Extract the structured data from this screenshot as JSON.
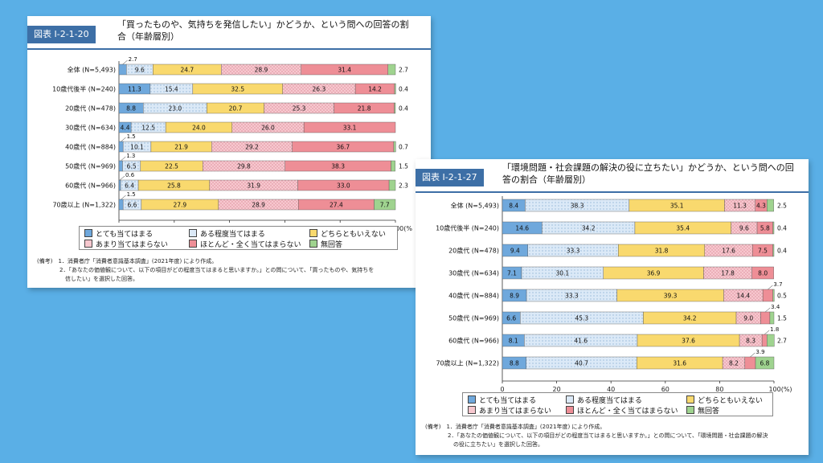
{
  "colors": {
    "very": "#6fa8dc",
    "somewhat": "#dbe9f7",
    "neutral": "#f9d96e",
    "not_much": "#f7c8cf",
    "not_at_all": "#ee8e96",
    "no_answer": "#9fd38f",
    "tag": "#3d6fa6"
  },
  "legend_labels": [
    "とても当てはまる",
    "ある程度当てはまる",
    "どちらともいえない",
    "あまり当てはまらない",
    "ほとんど・全く当てはまらない",
    "無回答"
  ],
  "axis_ticks": [
    "0",
    "20",
    "40",
    "60",
    "80",
    "100"
  ],
  "charts": [
    {
      "figure_tag": "図表 I-2-1-20",
      "title_line1": "「買ったものや、気持ちを発信したい」かどうか、という問への回答の割",
      "title_line2": "合（年齢層別）",
      "unit_label": "100(%",
      "notes": [
        "(備考)　1．消費者庁「消費者意識基本調査」(2021年度) により作成。",
        "　　　　2．「あなたの価値観について、以下の項目がどの程度当てはまると思いますか。」との問について、「買ったものや、気持ちを",
        "　　　　　信したい」を選択した回答。"
      ],
      "chart_data": {
        "type": "bar",
        "orientation": "horizontal",
        "stacked": true,
        "categories": [
          "全体 (N=5,493)",
          "10歳代後半 (N=240)",
          "20歳代 (N=478)",
          "30歳代 (N=634)",
          "40歳代 (N=884)",
          "50歳代 (N=969)",
          "60歳代 (N=966)",
          "70歳以上 (N=1,322)"
        ],
        "series": [
          {
            "name": "とても当てはまる",
            "values": [
              2.7,
              11.3,
              8.8,
              4.4,
              1.5,
              1.3,
              0.6,
              1.5
            ]
          },
          {
            "name": "ある程度当てはまる",
            "values": [
              9.6,
              15.4,
              23.0,
              12.5,
              10.1,
              6.5,
              6.4,
              6.6
            ]
          },
          {
            "name": "どちらともいえない",
            "values": [
              24.7,
              32.5,
              20.7,
              24.0,
              21.9,
              22.5,
              25.8,
              27.9
            ]
          },
          {
            "name": "あまり当てはまらない",
            "values": [
              28.9,
              26.3,
              25.3,
              26.0,
              29.2,
              29.8,
              31.9,
              28.9
            ]
          },
          {
            "name": "ほとんど・全く当てはまらない",
            "values": [
              31.4,
              14.2,
              21.8,
              33.1,
              36.7,
              38.3,
              33.0,
              27.4
            ]
          },
          {
            "name": "無回答",
            "values": [
              2.7,
              0.4,
              0.4,
              0.0,
              0.7,
              1.5,
              2.3,
              7.7
            ]
          }
        ],
        "xlim": [
          0,
          100
        ]
      }
    },
    {
      "figure_tag": "図表 I-2-1-27",
      "title_line1": "「環境問題・社会課題の解決の役に立ちたい」かどうか、という問への回",
      "title_line2": "答の割合（年齢層別）",
      "unit_label": "100(%)",
      "notes": [
        "(備考)　1．消費者庁「消費者意識基本調査」(2021年度) により作成。",
        "　　　　2．「あなたの価値観について、以下の項目がどの程度当てはまると思いますか。」との問について、「環境問題・社会課題の解決",
        "　　　　　の役に立ちたい」を選択した回答。"
      ],
      "chart_data": {
        "type": "bar",
        "orientation": "horizontal",
        "stacked": true,
        "categories": [
          "全体 (N=5,493)",
          "10歳代後半 (N=240)",
          "20歳代 (N=478)",
          "30歳代 (N=634)",
          "40歳代 (N=884)",
          "50歳代 (N=969)",
          "60歳代 (N=966)",
          "70歳以上 (N=1,322)"
        ],
        "series": [
          {
            "name": "とても当てはまる",
            "values": [
              8.4,
              14.6,
              9.4,
              7.1,
              8.9,
              6.6,
              8.1,
              8.8
            ]
          },
          {
            "name": "ある程度当てはまる",
            "values": [
              38.3,
              34.2,
              33.3,
              30.1,
              33.3,
              45.3,
              41.6,
              40.7
            ]
          },
          {
            "name": "どちらともいえない",
            "values": [
              35.1,
              35.4,
              31.8,
              36.9,
              39.3,
              34.2,
              37.6,
              31.6
            ]
          },
          {
            "name": "あまり当てはまらない",
            "values": [
              11.3,
              9.6,
              17.6,
              17.8,
              14.4,
              9.0,
              8.3,
              8.2
            ]
          },
          {
            "name": "ほとんど・全く当てはまらない",
            "values": [
              4.3,
              5.8,
              7.5,
              8.0,
              3.7,
              3.4,
              1.8,
              3.9
            ]
          },
          {
            "name": "無回答",
            "values": [
              2.5,
              0.4,
              0.4,
              0.0,
              0.5,
              1.5,
              2.7,
              6.8
            ]
          }
        ],
        "xlim": [
          0,
          100
        ]
      }
    }
  ]
}
